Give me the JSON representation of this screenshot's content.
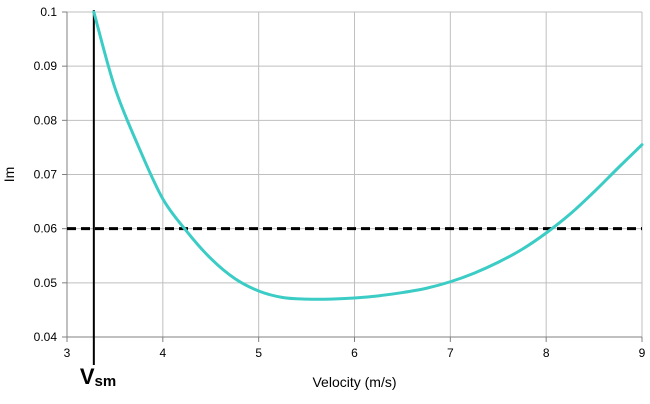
{
  "chart_data": {
    "type": "line",
    "title": "",
    "xlabel": "Velocity (m/s)",
    "ylabel": "Im",
    "xlim": [
      3,
      9
    ],
    "ylim": [
      0.04,
      0.1
    ],
    "x_ticks": [
      "3",
      "4",
      "5",
      "6",
      "7",
      "8",
      "9"
    ],
    "y_ticks": [
      "0.04",
      "0.05",
      "0.06",
      "0.07",
      "0.08",
      "0.09",
      "0.1"
    ],
    "grid": true,
    "legend": "none",
    "series": [
      {
        "color": "#3cccc6",
        "x": [
          3.28,
          3.5,
          3.75,
          4.0,
          4.25,
          4.5,
          4.75,
          5.0,
          5.25,
          5.5,
          5.75,
          6.0,
          6.25,
          6.5,
          6.75,
          7.0,
          7.25,
          7.5,
          7.75,
          8.0,
          8.25,
          8.5,
          8.75,
          9.0
        ],
        "y": [
          0.1,
          0.086,
          0.075,
          0.0655,
          0.0595,
          0.0545,
          0.0508,
          0.0485,
          0.0473,
          0.047,
          0.047,
          0.0472,
          0.0476,
          0.0482,
          0.049,
          0.0502,
          0.0518,
          0.0538,
          0.0562,
          0.0592,
          0.0627,
          0.0668,
          0.0712,
          0.0755
        ]
      }
    ],
    "reference_lines": [
      {
        "orientation": "horizontal",
        "value": 0.06,
        "style": "dashed",
        "color": "#000000"
      },
      {
        "orientation": "vertical",
        "value": 3.28,
        "style": "solid",
        "color": "#000000"
      }
    ],
    "annotations": [
      {
        "text": "V",
        "subscript": "sm",
        "x": 3.28
      }
    ]
  }
}
